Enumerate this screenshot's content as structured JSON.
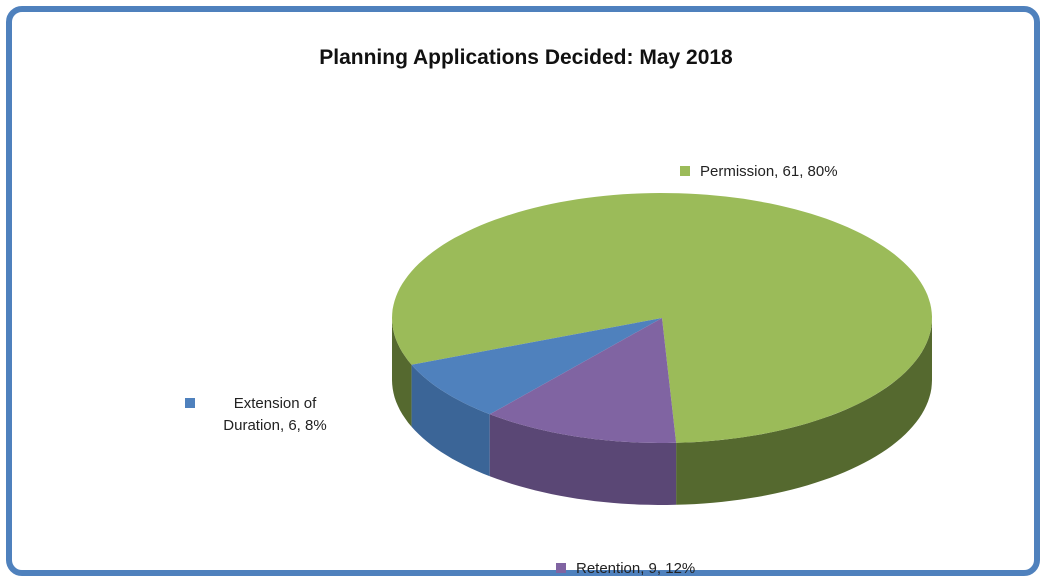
{
  "chart_data": {
    "type": "pie3d",
    "title": "Planning Applications Decided:  May 2018",
    "categories": [
      "Permission",
      "Extension of Duration",
      "Retention"
    ],
    "values": [
      61,
      6,
      9
    ],
    "value_labels": [
      "Permission, 61, 80%",
      "Extension of Duration, 6, 8%",
      "Retention, 9, 12%"
    ],
    "colors": [
      "#9bbb59",
      "#4f81bd",
      "#8064a2"
    ],
    "side_colors": [
      "#55692f",
      "#3b6597",
      "#5a4775"
    ]
  }
}
